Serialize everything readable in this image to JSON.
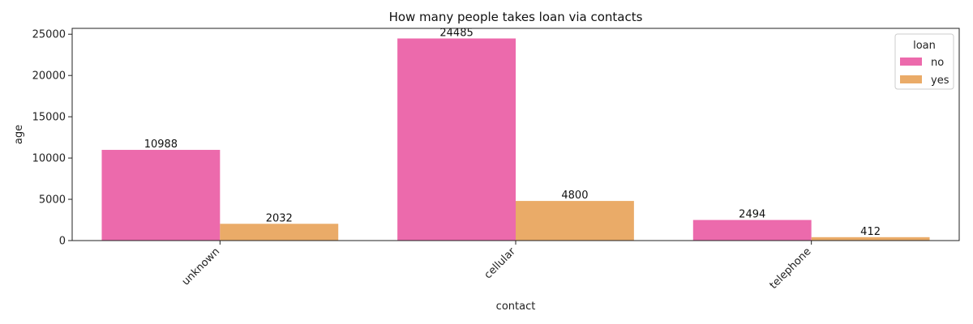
{
  "chart_data": {
    "type": "bar",
    "title": "How many people takes loan via contacts",
    "xlabel": "contact",
    "ylabel": "age",
    "categories": [
      "unknown",
      "cellular",
      "telephone"
    ],
    "series": [
      {
        "name": "no",
        "values": [
          10988,
          24485,
          2494
        ],
        "color": "#ec6aac"
      },
      {
        "name": "yes",
        "values": [
          2032,
          4800,
          412
        ],
        "color": "#eaab68"
      }
    ],
    "yticks": [
      0,
      5000,
      10000,
      15000,
      20000,
      25000
    ],
    "ytick_labels": [
      "0",
      "5000",
      "10000",
      "15000",
      "20000",
      "25000"
    ],
    "ylim": [
      0,
      25710
    ],
    "grid": false,
    "legend": {
      "title": "loan",
      "placement": "top-right"
    }
  }
}
